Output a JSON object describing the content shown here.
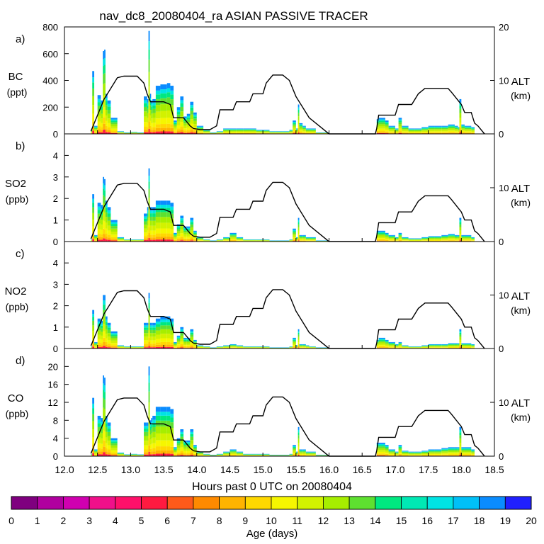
{
  "title": "nav_dc8_20080404_ra ASIAN PASSIVE TRACER",
  "colors": {
    "altitude_line": "#000000",
    "scale": [
      "#7f007f",
      "#b0009f",
      "#d000b0",
      "#f0108a",
      "#ff106a",
      "#ff1a40",
      "#ff5a1a",
      "#ff8a00",
      "#ffb400",
      "#ffd800",
      "#f6f600",
      "#d2f200",
      "#a6ee00",
      "#5ee030",
      "#00e880",
      "#00e8b4",
      "#00e4e4",
      "#00c0f8",
      "#0a8cff",
      "#2020ff",
      "#7020ff"
    ]
  },
  "chart_data": {
    "type": "area",
    "xlabel": "Hours past 0 UTC on 20080404",
    "xlim": [
      12.0,
      18.5
    ],
    "xticks": [
      12.0,
      12.5,
      13.0,
      13.5,
      14.0,
      14.5,
      15.0,
      15.5,
      16.0,
      16.5,
      17.0,
      17.5,
      18.0,
      18.5
    ],
    "xtick_labels": [
      "12.0",
      "12.5",
      "13.0",
      "13.5",
      "14.0",
      "14.5",
      "15.0",
      "15.5",
      "16.0",
      "16.5",
      "17.0",
      "17.5",
      "18.0",
      "18.5"
    ],
    "colorbar": {
      "label": "Age (days)",
      "min": 0,
      "max": 20,
      "tick_labels": [
        "0",
        "1",
        "2",
        "3",
        "4",
        "5",
        "6",
        "7",
        "8",
        "9",
        "10",
        "11",
        "12",
        "13",
        "14",
        "15",
        "16",
        "17",
        "18",
        "19",
        "20"
      ]
    },
    "altitude_axis": {
      "label": "ALT",
      "unit": "(km)",
      "ylim": [
        0,
        20
      ],
      "tick_values": [
        0,
        10,
        20
      ],
      "tick_labels_by_panel": [
        [
          "0",
          "10",
          "20"
        ],
        [
          "0",
          "10"
        ],
        [
          "0",
          "10"
        ],
        [
          "0",
          "10"
        ]
      ]
    },
    "altitude_km": {
      "x": [
        12.4,
        12.5,
        12.6,
        12.7,
        12.8,
        12.9,
        13.0,
        13.1,
        13.2,
        13.25,
        13.3,
        13.5,
        13.6,
        13.65,
        13.8,
        13.9,
        13.95,
        14.05,
        14.2,
        14.3,
        14.35,
        14.55,
        14.6,
        14.8,
        14.85,
        15.0,
        15.05,
        15.15,
        15.3,
        15.4,
        15.5,
        15.7,
        15.9,
        16.0,
        16.7,
        16.72,
        16.75,
        16.85,
        17.0,
        17.05,
        17.25,
        17.35,
        17.45,
        17.6,
        17.8,
        17.85,
        18.0,
        18.05,
        18.15,
        18.2,
        18.25,
        18.35
      ],
      "y": [
        0.5,
        3.5,
        6.5,
        8.5,
        10.5,
        10.8,
        10.8,
        10.8,
        9.5,
        7.5,
        6.0,
        6.0,
        5.5,
        3.0,
        3.0,
        1.5,
        1.0,
        0.8,
        0.8,
        1.5,
        4.5,
        4.5,
        6.0,
        6.0,
        7.5,
        7.5,
        9.5,
        11.0,
        11.0,
        10.0,
        7.0,
        3.0,
        1.0,
        0.0,
        0.0,
        1.0,
        3.5,
        3.5,
        3.5,
        5.5,
        5.5,
        7.5,
        8.5,
        8.5,
        8.5,
        7.8,
        5.5,
        4.0,
        4.0,
        2.0,
        1.5,
        0.0
      ]
    },
    "panels": [
      {
        "label": "a)",
        "species": "BC",
        "unit": "(ppt)",
        "ylim": [
          0,
          800
        ],
        "yticks": [
          0,
          200,
          400,
          600,
          800
        ],
        "ytick_labels": [
          "0",
          "200",
          "400",
          "600",
          "800"
        ],
        "x": [
          12.4,
          12.42,
          12.45,
          12.5,
          12.55,
          12.58,
          12.6,
          12.62,
          12.65,
          12.7,
          12.8,
          12.9,
          13.0,
          13.1,
          13.2,
          13.25,
          13.27,
          13.29,
          13.31,
          13.33,
          13.38,
          13.45,
          13.55,
          13.6,
          13.65,
          13.7,
          13.75,
          13.8,
          13.85,
          13.9,
          13.95,
          14.0,
          14.1,
          14.2,
          14.3,
          14.4,
          14.5,
          14.6,
          14.7,
          14.8,
          14.9,
          15.0,
          15.1,
          15.2,
          15.3,
          15.4,
          15.45,
          15.5,
          15.53,
          15.55,
          15.6,
          15.65,
          15.7,
          15.8,
          15.9,
          16.0,
          16.7,
          16.72,
          16.75,
          16.85,
          16.9,
          17.0,
          17.05,
          17.1,
          17.2,
          17.3,
          17.4,
          17.5,
          17.6,
          17.7,
          17.8,
          17.9,
          17.95,
          17.97,
          18.0,
          18.05,
          18.15,
          18.2
        ],
        "values": [
          30,
          470,
          60,
          290,
          250,
          620,
          630,
          300,
          250,
          120,
          20,
          10,
          15,
          10,
          280,
          260,
          770,
          300,
          250,
          260,
          360,
          370,
          380,
          360,
          100,
          200,
          280,
          130,
          150,
          240,
          160,
          60,
          30,
          10,
          20,
          40,
          40,
          40,
          40,
          40,
          30,
          30,
          20,
          20,
          20,
          30,
          100,
          40,
          220,
          80,
          60,
          40,
          40,
          10,
          10,
          0,
          0,
          110,
          120,
          100,
          60,
          40,
          120,
          60,
          40,
          40,
          50,
          60,
          60,
          60,
          70,
          60,
          50,
          260,
          70,
          60,
          50,
          0
        ]
      },
      {
        "label": "b)",
        "species": "SO2",
        "unit": "(ppb)",
        "ylim": [
          0,
          5
        ],
        "yticks": [
          0,
          1,
          2,
          3,
          4
        ],
        "ytick_labels": [
          "0",
          "1",
          "2",
          "3",
          "4"
        ],
        "x": [
          12.4,
          12.42,
          12.45,
          12.5,
          12.55,
          12.58,
          12.6,
          12.62,
          12.65,
          12.7,
          12.8,
          12.9,
          13.0,
          13.1,
          13.2,
          13.25,
          13.27,
          13.29,
          13.31,
          13.33,
          13.38,
          13.45,
          13.55,
          13.6,
          13.65,
          13.7,
          13.75,
          13.8,
          13.85,
          13.9,
          13.95,
          14.0,
          14.1,
          14.2,
          14.3,
          14.4,
          14.5,
          14.6,
          14.7,
          14.8,
          14.9,
          15.0,
          15.1,
          15.2,
          15.3,
          15.4,
          15.45,
          15.5,
          15.53,
          15.55,
          15.6,
          15.65,
          15.7,
          15.8,
          15.9,
          16.0,
          16.7,
          16.72,
          16.75,
          16.85,
          16.9,
          17.0,
          17.05,
          17.1,
          17.2,
          17.3,
          17.4,
          17.5,
          17.6,
          17.7,
          17.8,
          17.9,
          17.95,
          17.97,
          18.0,
          18.05,
          18.15,
          18.2
        ],
        "values": [
          0.1,
          2.2,
          0.3,
          1.8,
          1.7,
          3.0,
          2.9,
          1.9,
          1.6,
          1.0,
          0.2,
          0.1,
          0.1,
          0.1,
          1.3,
          1.6,
          3.4,
          1.6,
          1.6,
          1.6,
          1.9,
          1.9,
          1.9,
          1.8,
          0.4,
          0.8,
          1.2,
          0.7,
          0.7,
          1.1,
          0.5,
          0.2,
          0.1,
          0.05,
          0.1,
          0.2,
          0.4,
          0.2,
          0.1,
          0.1,
          0.1,
          0.1,
          0.05,
          0.05,
          0.05,
          0.1,
          0.6,
          0.2,
          1.1,
          0.3,
          0.3,
          0.2,
          0.2,
          0.05,
          0.05,
          0,
          0,
          0.5,
          0.5,
          0.4,
          0.3,
          0.2,
          0.4,
          0.2,
          0.15,
          0.15,
          0.2,
          0.25,
          0.25,
          0.3,
          0.35,
          0.3,
          0.3,
          1.1,
          0.3,
          0.3,
          0.2,
          0
        ]
      },
      {
        "label": "c)",
        "species": "NO2",
        "unit": "(ppb)",
        "ylim": [
          0,
          5
        ],
        "yticks": [
          0,
          1,
          2,
          3,
          4
        ],
        "ytick_labels": [
          "0",
          "1",
          "2",
          "3",
          "4"
        ],
        "x": [
          12.4,
          12.42,
          12.45,
          12.5,
          12.55,
          12.58,
          12.6,
          12.62,
          12.65,
          12.7,
          12.8,
          12.9,
          13.0,
          13.1,
          13.2,
          13.25,
          13.27,
          13.29,
          13.31,
          13.33,
          13.38,
          13.45,
          13.55,
          13.6,
          13.65,
          13.7,
          13.75,
          13.8,
          13.85,
          13.9,
          13.95,
          14.0,
          14.1,
          14.2,
          14.3,
          14.4,
          14.5,
          14.6,
          14.7,
          14.8,
          14.9,
          15.0,
          15.1,
          15.2,
          15.3,
          15.4,
          15.45,
          15.5,
          15.53,
          15.55,
          15.6,
          15.65,
          15.7,
          15.8,
          15.9,
          16.0,
          16.7,
          16.72,
          16.75,
          16.85,
          16.9,
          17.0,
          17.05,
          17.1,
          17.2,
          17.3,
          17.4,
          17.5,
          17.6,
          17.7,
          17.8,
          17.9,
          17.95,
          17.97,
          18.0,
          18.05,
          18.15,
          18.2
        ],
        "values": [
          0.1,
          1.8,
          0.3,
          1.4,
          1.3,
          2.5,
          2.5,
          1.5,
          1.2,
          0.8,
          0.15,
          0.1,
          0.1,
          0.1,
          1.2,
          1.2,
          2.6,
          1.2,
          1.2,
          1.2,
          1.4,
          1.5,
          1.5,
          1.4,
          0.3,
          0.6,
          1.0,
          0.5,
          0.5,
          0.9,
          0.4,
          0.15,
          0.1,
          0.05,
          0.1,
          0.15,
          0.2,
          0.15,
          0.1,
          0.1,
          0.1,
          0.1,
          0.05,
          0.05,
          0.05,
          0.1,
          0.5,
          0.15,
          0.9,
          0.2,
          0.2,
          0.15,
          0.1,
          0.05,
          0.05,
          0,
          0,
          0.4,
          0.5,
          0.4,
          0.3,
          0.2,
          0.3,
          0.15,
          0.1,
          0.1,
          0.15,
          0.2,
          0.2,
          0.2,
          0.25,
          0.25,
          0.25,
          0.9,
          0.25,
          0.25,
          0.2,
          0
        ]
      },
      {
        "label": "d)",
        "species": "CO",
        "unit": "(ppb)",
        "ylim": [
          0,
          24
        ],
        "yticks": [
          0,
          4,
          8,
          12,
          16,
          20
        ],
        "ytick_labels": [
          "0",
          "4",
          "8",
          "12",
          "16",
          "20"
        ],
        "x": [
          12.4,
          12.42,
          12.45,
          12.5,
          12.55,
          12.58,
          12.6,
          12.62,
          12.65,
          12.7,
          12.8,
          12.9,
          13.0,
          13.1,
          13.2,
          13.25,
          13.27,
          13.29,
          13.31,
          13.33,
          13.38,
          13.45,
          13.55,
          13.6,
          13.65,
          13.7,
          13.75,
          13.8,
          13.85,
          13.9,
          13.95,
          14.0,
          14.1,
          14.2,
          14.3,
          14.4,
          14.5,
          14.6,
          14.7,
          14.8,
          14.9,
          15.0,
          15.1,
          15.2,
          15.3,
          15.4,
          15.45,
          15.5,
          15.53,
          15.55,
          15.6,
          15.65,
          15.7,
          15.8,
          15.9,
          16.0,
          16.7,
          16.72,
          16.75,
          16.85,
          16.9,
          17.0,
          17.05,
          17.1,
          17.2,
          17.3,
          17.4,
          17.5,
          17.6,
          17.7,
          17.8,
          17.9,
          17.95,
          17.97,
          18.0,
          18.05,
          18.15,
          18.2
        ],
        "values": [
          0.5,
          13.0,
          1.5,
          9.0,
          8.5,
          18.0,
          17.5,
          9.0,
          7.5,
          4.0,
          0.8,
          0.4,
          0.5,
          0.4,
          7.5,
          7.5,
          20.0,
          8.0,
          8.5,
          9.0,
          11.0,
          11.0,
          11.0,
          10.5,
          2.0,
          4.0,
          6.0,
          3.5,
          3.5,
          6.0,
          2.5,
          1.0,
          0.5,
          0.3,
          0.5,
          1.0,
          1.5,
          1.0,
          0.5,
          0.5,
          0.5,
          0.5,
          0.3,
          0.3,
          0.3,
          0.5,
          2.5,
          1.0,
          6.5,
          1.5,
          1.5,
          1.0,
          1.0,
          0.3,
          0.3,
          0,
          0,
          3.0,
          3.0,
          2.5,
          1.5,
          1.0,
          2.5,
          1.2,
          1.0,
          1.0,
          1.2,
          1.5,
          1.5,
          1.8,
          2.0,
          2.0,
          2.0,
          6.5,
          2.0,
          2.0,
          1.5,
          0
        ]
      }
    ]
  }
}
